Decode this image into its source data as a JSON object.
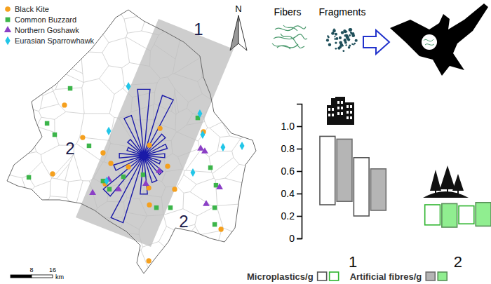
{
  "map": {
    "species": [
      {
        "name": "Black Kite",
        "color": "#f5a01e",
        "marker": "circle",
        "points": [
          [
            -4.227,
            40.702
          ],
          [
            -4.115,
            40.542
          ],
          [
            -3.99,
            40.466
          ],
          [
            -3.942,
            40.414
          ],
          [
            -4.3,
            40.362
          ],
          [
            -3.977,
            40.313
          ],
          [
            -3.834,
            40.397
          ],
          [
            -3.705,
            40.504
          ],
          [
            -3.593,
            40.4
          ],
          [
            -3.64,
            40.587
          ],
          [
            -3.709,
            40.293
          ],
          [
            -3.705,
            40.209
          ],
          [
            -3.55,
            40.286
          ],
          [
            -3.373,
            40.57
          ],
          [
            -3.265,
            40.088
          ],
          [
            -3.709,
            39.932
          ]
        ]
      },
      {
        "name": "Common Buzzard",
        "color": "#3cb54a",
        "marker": "square",
        "points": [
          [
            -4.192,
            40.785
          ],
          [
            -4.334,
            40.612
          ],
          [
            -4.287,
            40.556
          ],
          [
            -4.446,
            40.345
          ],
          [
            -4.076,
            40.501
          ],
          [
            -3.99,
            40.327
          ],
          [
            -3.951,
            40.286
          ],
          [
            -3.865,
            40.348
          ],
          [
            -3.744,
            40.358
          ],
          [
            -3.662,
            40.195
          ],
          [
            -3.576,
            40.195
          ],
          [
            -3.408,
            40.639
          ],
          [
            -3.33,
            40.393
          ],
          [
            -3.296,
            40.306
          ],
          [
            -3.304,
            40.195
          ],
          [
            -3.304,
            40.112
          ]
        ]
      },
      {
        "name": "Northern Goshawk",
        "color": "#8b3fc6",
        "marker": "triangle",
        "points": [
          [
            -4.054,
            40.268
          ],
          [
            -3.955,
            40.334
          ],
          [
            -3.895,
            40.286
          ],
          [
            -3.727,
            40.313
          ],
          [
            -3.645,
            40.376
          ],
          [
            -3.39,
            40.487
          ],
          [
            -3.365,
            40.473
          ],
          [
            -3.274,
            40.296
          ],
          [
            -3.356,
            40.213
          ]
        ]
      },
      {
        "name": "Eurasian Sparrowhawk",
        "color": "#22c6e8",
        "marker": "diamond",
        "points": [
          [
            -3.834,
            40.795
          ],
          [
            -3.955,
            40.574
          ],
          [
            -3.378,
            40.556
          ],
          [
            -3.253,
            40.494
          ],
          [
            -3.136,
            40.501
          ],
          [
            -3.438,
            40.369
          ],
          [
            -3.968,
            40.327
          ],
          [
            -3.395,
            40.66
          ]
        ]
      }
    ],
    "region_labels": [
      "1",
      "2",
      "2"
    ],
    "north_label": "N",
    "scale_bar": {
      "ticks": [
        8,
        16
      ],
      "unit": "km"
    }
  },
  "illustration": {
    "labels": [
      "Fibers",
      "Fragments"
    ]
  },
  "chart_data": {
    "type": "bar",
    "categories": [
      "1",
      "2"
    ],
    "series": [
      {
        "name": "Microplastics/g",
        "colors": [
          "#555555",
          "#2fb52f"
        ],
        "values": [
          [
            [
              0.3,
              0.91
            ],
            [
              0.2,
              0.72
            ]
          ],
          [
            [
              0.12,
              0.3
            ],
            [
              0.13,
              0.29
            ]
          ]
        ]
      },
      {
        "name": "Artificial fibres/g",
        "colors": [
          "#b5b5b5",
          "#90ee90"
        ],
        "values": [
          [
            [
              0.33,
              0.885
            ],
            [
              0.25,
              0.62
            ]
          ],
          [
            [
              0.1,
              0.31
            ],
            [
              0.11,
              0.32
            ]
          ]
        ]
      }
    ],
    "ylim": [
      0,
      1.2
    ],
    "yticks": [
      0,
      0.2,
      0.4,
      0.6,
      0.8,
      {
        "value": 1,
        "label": "1.0"
      }
    ],
    "legend": "bottom"
  }
}
